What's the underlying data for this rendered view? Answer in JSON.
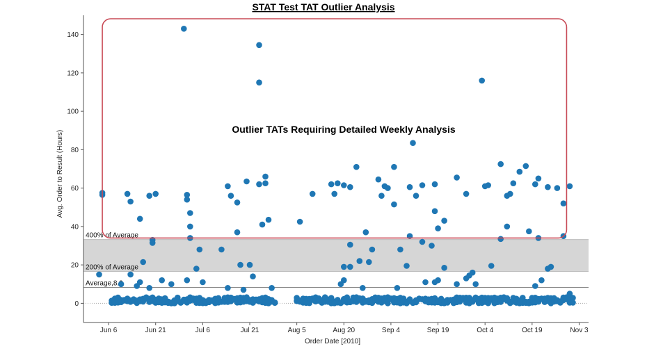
{
  "chart_data": {
    "type": "scatter",
    "title": "STAT Test TAT Outlier Analysis",
    "xlabel": "Order Date [2010]",
    "ylabel": "Avg. Order to Result (Hours)",
    "x_range": [
      "2010-05-29",
      "2010-11-06"
    ],
    "ylim": [
      -10,
      150
    ],
    "y_ticks": [
      0,
      20,
      40,
      60,
      80,
      100,
      120,
      140
    ],
    "x_ticks": [
      {
        "date": "2010-06-06",
        "label": "Jun 6"
      },
      {
        "date": "2010-06-21",
        "label": "Jun 21"
      },
      {
        "date": "2010-07-06",
        "label": "Jul 6"
      },
      {
        "date": "2010-07-21",
        "label": "Jul 21"
      },
      {
        "date": "2010-08-05",
        "label": "Aug 5"
      },
      {
        "date": "2010-08-20",
        "label": "Aug 20"
      },
      {
        "date": "2010-09-04",
        "label": "Sep 4"
      },
      {
        "date": "2010-09-19",
        "label": "Sep 19"
      },
      {
        "date": "2010-10-04",
        "label": "Oct 4"
      },
      {
        "date": "2010-10-19",
        "label": "Oct 19"
      },
      {
        "date": "2010-11-03",
        "label": "Nov 3"
      }
    ],
    "reference_lines": [
      {
        "label": "Average,8.3",
        "value": 8.3
      },
      {
        "label": "200% of Average",
        "value": 16.6
      },
      {
        "label": "400% of Average",
        "value": 33.2
      }
    ],
    "annotation": {
      "text": "Outlier TATs Requiring Detailed Weekly Analysis",
      "box_y": [
        34,
        150
      ],
      "box_x": [
        "2010-06-04",
        "2010-10-30"
      ]
    },
    "colors": {
      "point": "#1f77b4",
      "band": "#d6d6d6",
      "box": "#c84a56",
      "avg_line": "#888888",
      "zero_line": "#aaaaaa"
    },
    "series": [
      {
        "points": [
          [
            "2010-06-04",
            56.5
          ],
          [
            "2010-06-04",
            57.5
          ],
          [
            "2010-06-03",
            15
          ],
          [
            "2010-06-12",
            57
          ],
          [
            "2010-06-13",
            53
          ],
          [
            "2010-06-16",
            44
          ],
          [
            "2010-06-17",
            21.5
          ],
          [
            "2010-06-19",
            56
          ],
          [
            "2010-06-20",
            33
          ],
          [
            "2010-06-20",
            31.5
          ],
          [
            "2010-06-21",
            57
          ],
          [
            "2010-06-10",
            10
          ],
          [
            "2010-06-13",
            15
          ],
          [
            "2010-06-15",
            9
          ],
          [
            "2010-06-16",
            11
          ],
          [
            "2010-06-19",
            8
          ],
          [
            "2010-06-23",
            12
          ],
          [
            "2010-06-26",
            10
          ],
          [
            "2010-06-30",
            143
          ],
          [
            "2010-07-01",
            56.5
          ],
          [
            "2010-07-01",
            54
          ],
          [
            "2010-07-02",
            47
          ],
          [
            "2010-07-02",
            40
          ],
          [
            "2010-07-02",
            34
          ],
          [
            "2010-07-04",
            18
          ],
          [
            "2010-07-05",
            28
          ],
          [
            "2010-07-06",
            11
          ],
          [
            "2010-07-01",
            12
          ],
          [
            "2010-07-12",
            28
          ],
          [
            "2010-07-14",
            61
          ],
          [
            "2010-07-15",
            56
          ],
          [
            "2010-07-17",
            52.5
          ],
          [
            "2010-07-17",
            37
          ],
          [
            "2010-07-18",
            20
          ],
          [
            "2010-07-20",
            63.5
          ],
          [
            "2010-07-21",
            20
          ],
          [
            "2010-07-22",
            14
          ],
          [
            "2010-07-24",
            134.5
          ],
          [
            "2010-07-24",
            115
          ],
          [
            "2010-07-24",
            62
          ],
          [
            "2010-07-25",
            41
          ],
          [
            "2010-07-26",
            66
          ],
          [
            "2010-07-26",
            62.5
          ],
          [
            "2010-07-27",
            43.5
          ],
          [
            "2010-07-28",
            8
          ],
          [
            "2010-07-14",
            8
          ],
          [
            "2010-07-19",
            7
          ],
          [
            "2010-08-06",
            42.5
          ],
          [
            "2010-08-10",
            57
          ],
          [
            "2010-08-16",
            62
          ],
          [
            "2010-08-17",
            57
          ],
          [
            "2010-08-18",
            62.5
          ],
          [
            "2010-08-19",
            10
          ],
          [
            "2010-08-20",
            19
          ],
          [
            "2010-08-20",
            12
          ],
          [
            "2010-08-20",
            61.5
          ],
          [
            "2010-08-22",
            60.5
          ],
          [
            "2010-08-22",
            30.5
          ],
          [
            "2010-08-22",
            19
          ],
          [
            "2010-08-24",
            71
          ],
          [
            "2010-08-25",
            22
          ],
          [
            "2010-08-26",
            8
          ],
          [
            "2010-08-27",
            37
          ],
          [
            "2010-08-28",
            21.5
          ],
          [
            "2010-08-29",
            28
          ],
          [
            "2010-08-31",
            64.5
          ],
          [
            "2010-09-01",
            56
          ],
          [
            "2010-09-02",
            61
          ],
          [
            "2010-09-03",
            60
          ],
          [
            "2010-09-05",
            71
          ],
          [
            "2010-09-05",
            51.5
          ],
          [
            "2010-09-06",
            8
          ],
          [
            "2010-09-07",
            28
          ],
          [
            "2010-09-09",
            19.5
          ],
          [
            "2010-09-10",
            60.5
          ],
          [
            "2010-09-10",
            35
          ],
          [
            "2010-09-11",
            83.5
          ],
          [
            "2010-09-12",
            56
          ],
          [
            "2010-09-14",
            61.5
          ],
          [
            "2010-09-14",
            32
          ],
          [
            "2010-09-15",
            11
          ],
          [
            "2010-09-17",
            30
          ],
          [
            "2010-09-18",
            62
          ],
          [
            "2010-09-18",
            48
          ],
          [
            "2010-09-18",
            11
          ],
          [
            "2010-09-19",
            39
          ],
          [
            "2010-09-19",
            12
          ],
          [
            "2010-09-21",
            43
          ],
          [
            "2010-09-21",
            18.5
          ],
          [
            "2010-09-25",
            65.5
          ],
          [
            "2010-09-25",
            10
          ],
          [
            "2010-09-28",
            57
          ],
          [
            "2010-09-28",
            13
          ],
          [
            "2010-09-29",
            14.5
          ],
          [
            "2010-09-30",
            16
          ],
          [
            "2010-10-01",
            10
          ],
          [
            "2010-10-03",
            116
          ],
          [
            "2010-10-04",
            61
          ],
          [
            "2010-10-05",
            61.5
          ],
          [
            "2010-10-06",
            19.5
          ],
          [
            "2010-10-09",
            72.5
          ],
          [
            "2010-10-09",
            33.5
          ],
          [
            "2010-10-11",
            56
          ],
          [
            "2010-10-11",
            40
          ],
          [
            "2010-10-12",
            57
          ],
          [
            "2010-10-13",
            62.5
          ],
          [
            "2010-10-15",
            68.5
          ],
          [
            "2010-10-17",
            71.5
          ],
          [
            "2010-10-18",
            37.5
          ],
          [
            "2010-10-20",
            62
          ],
          [
            "2010-10-21",
            34
          ],
          [
            "2010-10-21",
            65
          ],
          [
            "2010-10-20",
            9
          ],
          [
            "2010-10-22",
            12
          ],
          [
            "2010-10-24",
            60.5
          ],
          [
            "2010-10-24",
            18
          ],
          [
            "2010-10-25",
            19
          ],
          [
            "2010-10-27",
            60
          ],
          [
            "2010-10-29",
            52
          ],
          [
            "2010-10-29",
            35
          ],
          [
            "2010-10-31",
            61
          ],
          [
            "2010-10-31",
            5
          ]
        ]
      }
    ]
  }
}
